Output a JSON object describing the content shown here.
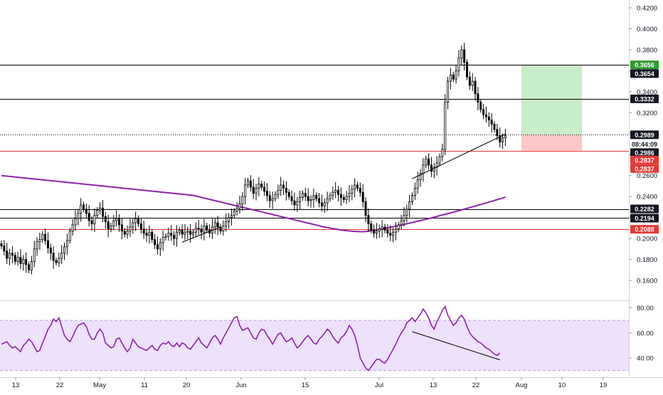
{
  "chart_data": [
    {
      "type": "candlestick",
      "panel": "price",
      "yscale": "linear",
      "ylim": [
        0.14,
        0.43
      ],
      "y_ticks": [
        "0.1600",
        "0.1800",
        "0.2000",
        "0.2200",
        "0.2400",
        "0.2600",
        "0.2800",
        "0.3000",
        "0.3200",
        "0.3400",
        "0.3600",
        "0.3800",
        "0.4000",
        "0.4200"
      ],
      "x_ticks": [
        "13",
        "22",
        "May",
        "11",
        "20",
        "Jun",
        "15",
        "Jul",
        "13",
        "22",
        "Aug",
        "10",
        "19"
      ],
      "colors": {
        "up": "#000000",
        "down": "#000000",
        "ma": "#8e24aa",
        "green_zone": "#c9ecc9",
        "red_zone": "#fcc7c7",
        "red_line": "#e53935"
      },
      "series": [
        {
          "kind": "ohlc_close_path",
          "values": [
            0.193,
            0.188,
            0.181,
            0.186,
            0.184,
            0.178,
            0.182,
            0.176,
            0.18,
            0.175,
            0.17,
            0.178,
            0.19,
            0.197,
            0.199,
            0.204,
            0.198,
            0.191,
            0.186,
            0.179,
            0.177,
            0.181,
            0.186,
            0.192,
            0.198,
            0.207,
            0.213,
            0.219,
            0.224,
            0.232,
            0.228,
            0.224,
            0.217,
            0.214,
            0.222,
            0.227,
            0.229,
            0.221,
            0.216,
            0.209,
            0.212,
            0.217,
            0.219,
            0.213,
            0.207,
            0.204,
            0.207,
            0.211,
            0.215,
            0.219,
            0.214,
            0.209,
            0.205,
            0.203,
            0.206,
            0.199,
            0.194,
            0.19,
            0.196,
            0.201,
            0.202,
            0.205,
            0.203,
            0.2,
            0.206,
            0.208,
            0.204,
            0.206,
            0.207,
            0.204,
            0.206,
            0.21,
            0.209,
            0.206,
            0.212,
            0.208,
            0.205,
            0.211,
            0.215,
            0.211,
            0.207,
            0.212,
            0.216,
            0.22,
            0.222,
            0.226,
            0.229,
            0.233,
            0.24,
            0.251,
            0.255,
            0.249,
            0.243,
            0.248,
            0.252,
            0.249,
            0.245,
            0.241,
            0.236,
            0.238,
            0.242,
            0.246,
            0.251,
            0.248,
            0.244,
            0.24,
            0.236,
            0.232,
            0.235,
            0.239,
            0.243,
            0.24,
            0.236,
            0.237,
            0.241,
            0.238,
            0.234,
            0.231,
            0.234,
            0.238,
            0.241,
            0.244,
            0.246,
            0.242,
            0.239,
            0.237,
            0.24,
            0.243,
            0.247,
            0.251,
            0.248,
            0.244,
            0.235,
            0.222,
            0.214,
            0.208,
            0.205,
            0.207,
            0.209,
            0.211,
            0.208,
            0.205,
            0.203,
            0.206,
            0.209,
            0.213,
            0.217,
            0.222,
            0.228,
            0.235,
            0.241,
            0.248,
            0.256,
            0.262,
            0.27,
            0.276,
            0.27,
            0.264,
            0.268,
            0.272,
            0.278,
            0.285,
            0.33,
            0.35,
            0.356,
            0.352,
            0.36,
            0.372,
            0.38,
            0.368,
            0.354,
            0.346,
            0.35,
            0.338,
            0.33,
            0.323,
            0.318,
            0.316,
            0.313,
            0.309,
            0.304,
            0.298,
            0.292,
            0.296,
            0.298
          ]
        },
        {
          "kind": "ma",
          "name": "",
          "color": "#8e24aa"
        }
      ],
      "horizontal_lines": [
        {
          "value": 0.3656,
          "color": "#000000",
          "style": "solid"
        },
        {
          "value": 0.3332,
          "color": "#000000",
          "style": "solid"
        },
        {
          "value": 0.2989,
          "color": "#000000",
          "style": "dotted"
        },
        {
          "value": 0.2837,
          "color": "#e53935",
          "style": "solid"
        },
        {
          "value": 0.2282,
          "color": "#000000",
          "style": "solid"
        },
        {
          "value": 0.2194,
          "color": "#000000",
          "style": "solid"
        },
        {
          "value": 0.2088,
          "color": "#e53935",
          "style": "solid"
        }
      ],
      "price_labels": [
        {
          "text": "0.3656",
          "bg": "#2e9a2e",
          "fg": "#ffffff"
        },
        {
          "text": "0.3654",
          "bg": "#131722",
          "fg": "#ffffff"
        },
        {
          "text": "0.3332",
          "bg": "#131722",
          "fg": "#ffffff"
        },
        {
          "text": "0.2989",
          "bg": "#131722",
          "fg": "#ffffff"
        },
        {
          "text": "08:44:09",
          "bg": "#ffffff",
          "fg": "#131722"
        },
        {
          "text": "0.2986",
          "bg": "#131722",
          "fg": "#ffffff"
        },
        {
          "text": "0.2837",
          "bg": "#e53935",
          "fg": "#ffffff"
        },
        {
          "text": "0.2837",
          "bg": "#e53935",
          "fg": "#ffffff"
        },
        {
          "text": "0.2282",
          "bg": "#131722",
          "fg": "#ffffff"
        },
        {
          "text": "0.2194",
          "bg": "#131722",
          "fg": "#ffffff"
        },
        {
          "text": "0.2088",
          "bg": "#e53935",
          "fg": "#ffffff"
        }
      ],
      "position_tool": {
        "entry": 0.2989,
        "target": 0.3656,
        "stop": 0.2837
      },
      "trendlines": [
        {
          "start": [
            66,
            0.1965
          ],
          "end": [
            80,
            0.211
          ]
        },
        {
          "start": [
            150,
            0.257
          ],
          "end": [
            184,
            0.2995
          ]
        }
      ],
      "grid": false
    },
    {
      "type": "line",
      "panel": "oscillator",
      "ylim": [
        24,
        84
      ],
      "y_ticks": [
        "80.00",
        "60.00",
        "40.00"
      ],
      "band": [
        30,
        70
      ],
      "colors": {
        "line": "#8e24aa",
        "band": "#ede1fb"
      },
      "series": [
        {
          "name": "",
          "values": [
            51,
            52,
            53,
            50,
            48,
            49,
            47,
            45,
            50,
            52,
            55,
            53,
            49,
            45,
            46,
            52,
            57,
            63,
            66,
            71,
            69,
            72,
            65,
            58,
            55,
            53,
            57,
            62,
            66,
            67,
            68,
            65,
            59,
            55,
            55,
            60,
            63,
            60,
            52,
            50,
            48,
            49,
            55,
            56,
            52,
            48,
            45,
            48,
            55,
            52,
            49,
            48,
            47,
            46,
            48,
            50,
            47,
            46,
            50,
            52,
            51,
            53,
            50,
            49,
            52,
            49,
            52,
            51,
            48,
            47,
            50,
            53,
            56,
            52,
            50,
            48,
            52,
            56,
            58,
            55,
            51,
            56,
            60,
            64,
            68,
            72,
            73,
            66,
            62,
            63,
            64,
            60,
            56,
            55,
            60,
            63,
            62,
            58,
            55,
            51,
            55,
            59,
            60,
            56,
            53,
            54,
            56,
            52,
            48,
            50,
            53,
            56,
            58,
            55,
            52,
            51,
            55,
            57,
            60,
            63,
            61,
            57,
            54,
            52,
            56,
            58,
            61,
            66,
            63,
            58,
            50,
            40,
            36,
            32,
            30,
            33,
            36,
            39,
            39,
            37,
            36,
            39,
            43,
            47,
            51,
            56,
            60,
            63,
            68,
            70,
            72,
            69,
            72,
            75,
            79,
            76,
            72,
            66,
            63,
            69,
            73,
            78,
            81,
            74,
            70,
            66,
            68,
            72,
            74,
            71,
            65,
            60,
            57,
            55,
            53,
            52,
            50,
            48,
            47,
            45,
            43,
            42,
            44
          ]
        }
      ],
      "trendlines": [
        {
          "start": [
            150,
            61
          ],
          "end": [
            182,
            38.5
          ]
        }
      ]
    }
  ]
}
